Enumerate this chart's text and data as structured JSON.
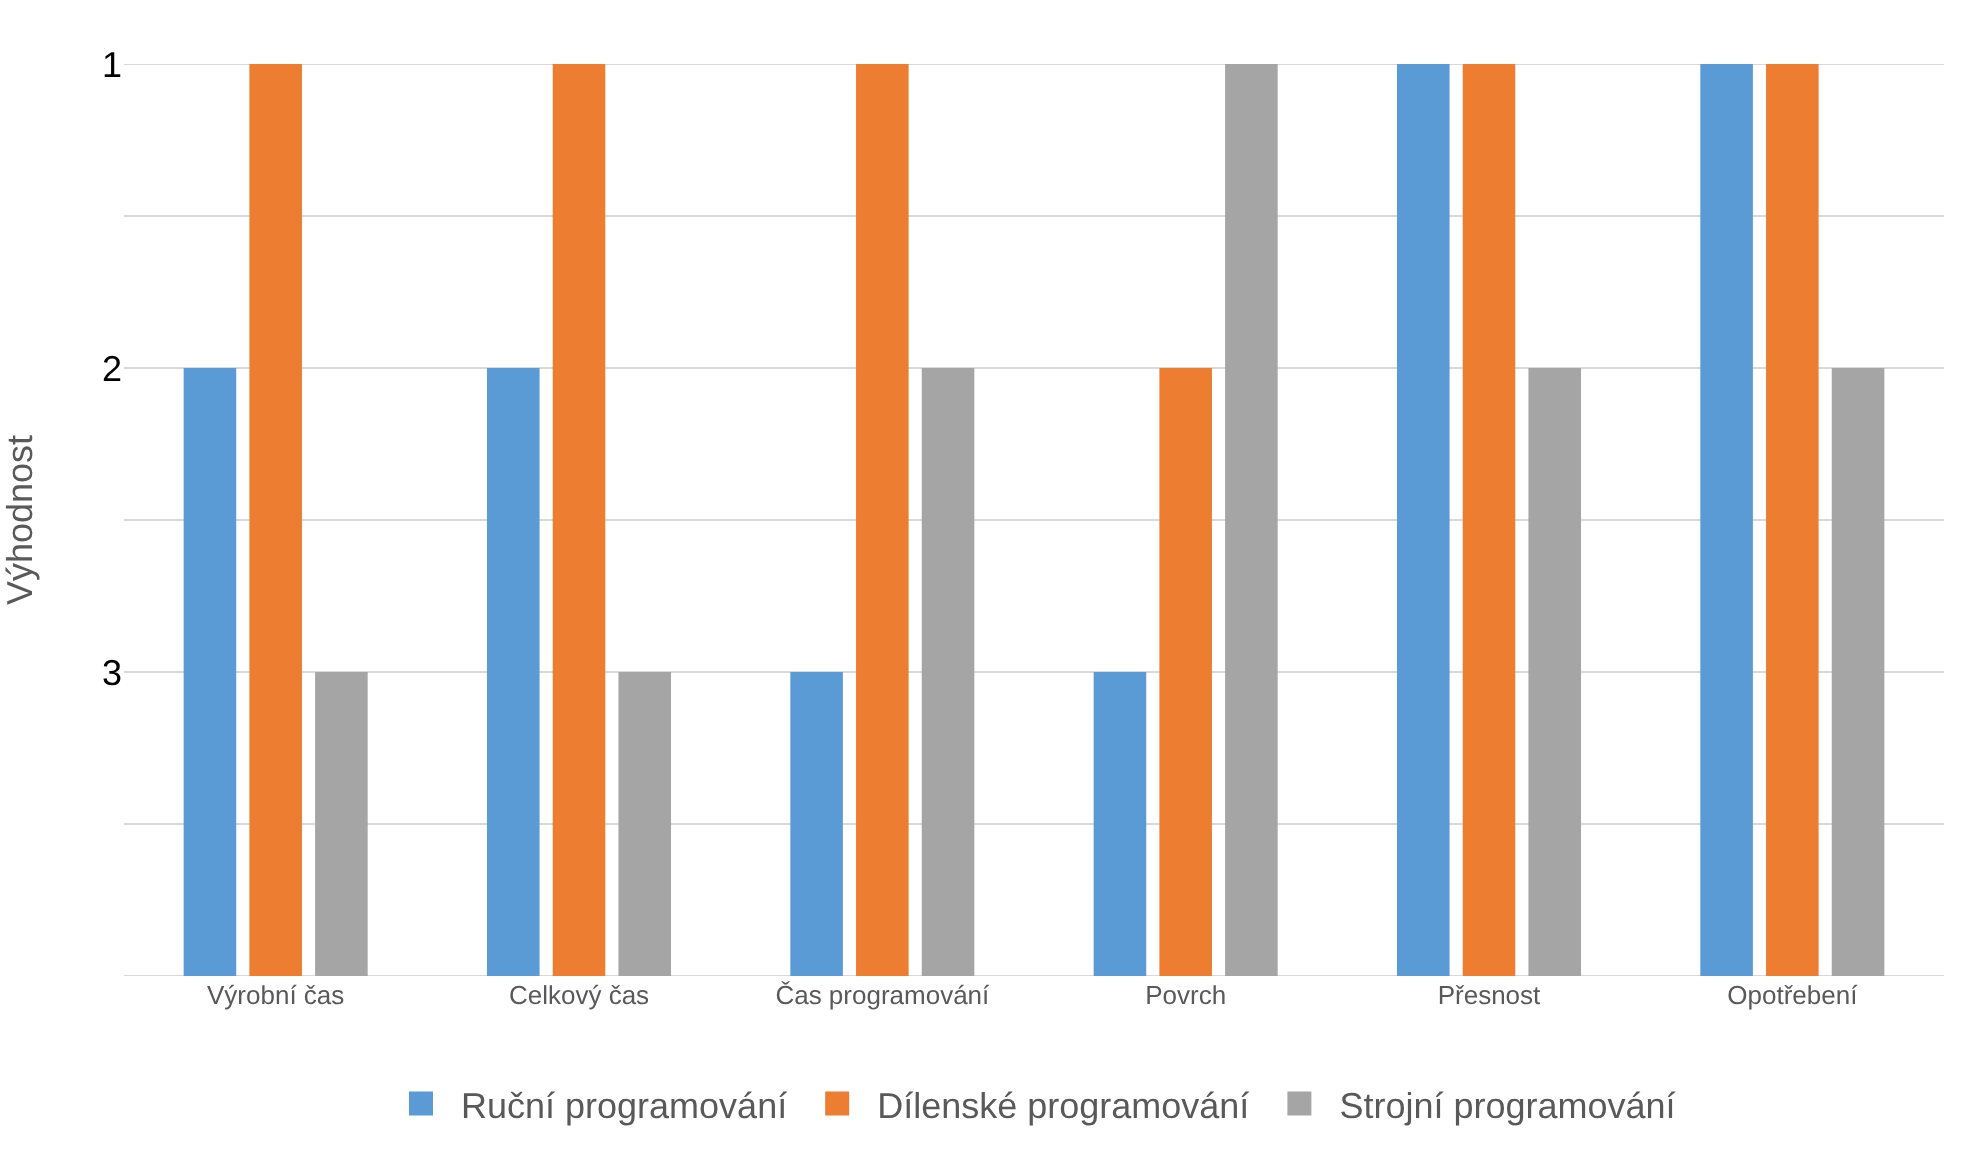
{
  "chart_data": {
    "type": "bar",
    "ylabel": "Výhodnost",
    "categories": [
      "Výrobní čas",
      "Celkový čas",
      "Čas programování",
      "Povrch",
      "Přesnost",
      "Opotřebení"
    ],
    "series": [
      {
        "name": "Ruční programování",
        "color": "#5b9bd5",
        "base": [
          4,
          4,
          4,
          4,
          4,
          4
        ],
        "values": [
          -2,
          -2,
          -1,
          -1,
          -3,
          -3
        ]
      },
      {
        "name": "Dílenské programování",
        "color": "#ed7d31",
        "base": [
          4,
          4,
          4,
          4,
          4,
          4
        ],
        "values": [
          -3,
          -3,
          -3,
          -2,
          -3,
          -3
        ]
      },
      {
        "name": "Strojní programování",
        "color": "#a5a5a5",
        "base": [
          4,
          4,
          4,
          4,
          4,
          4
        ],
        "values": [
          -1,
          -1,
          -2,
          -3,
          -2,
          -2
        ]
      }
    ],
    "ylim": [
      4,
      1
    ],
    "yticks": [
      1,
      {
        "value": 1.5,
        "label": null
      },
      2,
      {
        "value": 2.5,
        "label": null
      },
      3,
      {
        "value": 3.5,
        "label": null
      },
      {
        "value": 4,
        "label": null
      }
    ],
    "grid": "y",
    "legend": "bottom"
  }
}
